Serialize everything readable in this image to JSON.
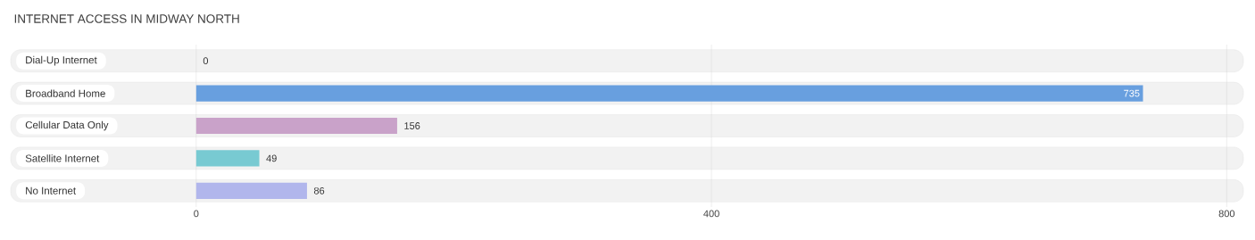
{
  "chart_data": {
    "type": "bar",
    "orientation": "horizontal",
    "title": "INTERNET ACCESS IN MIDWAY NORTH",
    "categories": [
      "Dial-Up Internet",
      "Broadband Home",
      "Cellular Data Only",
      "Satellite Internet",
      "No Internet"
    ],
    "values": [
      0,
      735,
      156,
      49,
      86
    ],
    "colors": [
      "#f2a7a6",
      "#689fdf",
      "#c9a2c9",
      "#78cad2",
      "#b1b6ec"
    ],
    "xlim": [
      -144,
      813
    ],
    "xticks": [
      0,
      400,
      800
    ],
    "grid": "x",
    "data_labels": true
  }
}
